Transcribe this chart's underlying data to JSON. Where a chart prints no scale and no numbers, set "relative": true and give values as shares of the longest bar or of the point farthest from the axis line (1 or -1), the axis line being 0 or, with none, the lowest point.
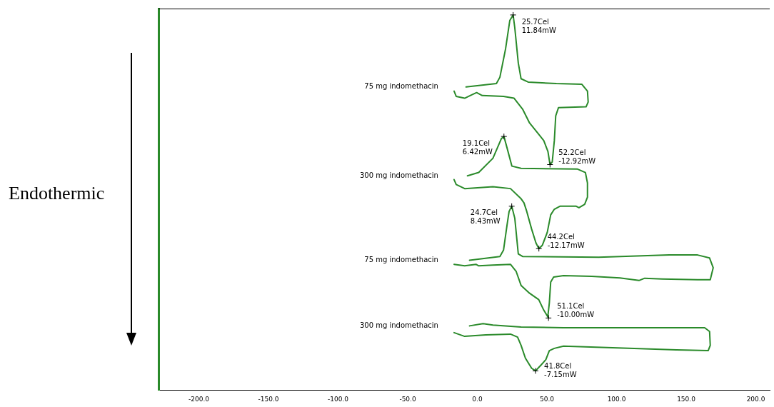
{
  "chart_data": {
    "type": "line",
    "relative": true,
    "marker": "none",
    "grid": false,
    "legend": false,
    "xlim": [
      -229,
      210
    ],
    "xticks": [
      {
        "value": -200,
        "label": "-200.0"
      },
      {
        "value": -150,
        "label": "-150.0"
      },
      {
        "value": -100,
        "label": "-100.0"
      },
      {
        "value": -50,
        "label": "-50.0"
      },
      {
        "value": 0,
        "label": "0.0"
      },
      {
        "value": 50,
        "label": "50.0"
      },
      {
        "value": 100,
        "label": "100.0"
      },
      {
        "value": 150,
        "label": "150.0"
      },
      {
        "value": 200,
        "label": "200.0"
      }
    ],
    "series": [
      {
        "name": "75 mg indomethacin",
        "color": "#2a8a2a",
        "x": [
          -8.1,
          13.7,
          16.2,
          20.3,
          23.3,
          25.7,
          26.9,
          29.4,
          31.4,
          36.5,
          56.8,
          75.1,
          79.1,
          79.6,
          78.1,
          58.3,
          56.3,
          55.3,
          53.8,
          52.2,
          50.7,
          47.7,
          43.6,
          37.5,
          32.5,
          26.4,
          18.8,
          3.5,
          -0.5,
          -4.1,
          -9.1,
          -15.2,
          -16.7
        ],
        "values": [
          0.808,
          0.817,
          0.834,
          0.91,
          0.985,
          1.0,
          0.966,
          0.872,
          0.83,
          0.821,
          0.817,
          0.815,
          0.797,
          0.768,
          0.755,
          0.753,
          0.731,
          0.665,
          0.608,
          0.601,
          0.636,
          0.665,
          0.684,
          0.712,
          0.749,
          0.778,
          0.783,
          0.785,
          0.793,
          0.787,
          0.778,
          0.783,
          0.797
        ]
      },
      {
        "name": "300 mg indomethacin",
        "color": "#2a8a2a",
        "x": [
          -7.1,
          1.0,
          11.2,
          17.2,
          19.1,
          21.3,
          24.8,
          31.4,
          72.0,
          77.6,
          79.1,
          79.1,
          77.1,
          73.0,
          71.0,
          59.3,
          55.3,
          52.7,
          50.2,
          46.7,
          44.2,
          42.1,
          39.0,
          35.5,
          33.5,
          31.4,
          23.8,
          11.2,
          -9.1,
          -15.2,
          -16.7
        ],
        "values": [
          0.571,
          0.58,
          0.618,
          0.67,
          0.676,
          0.646,
          0.597,
          0.591,
          0.589,
          0.58,
          0.552,
          0.514,
          0.495,
          0.486,
          0.49,
          0.49,
          0.482,
          0.467,
          0.42,
          0.386,
          0.377,
          0.392,
          0.429,
          0.476,
          0.499,
          0.51,
          0.537,
          0.542,
          0.537,
          0.548,
          0.561
        ]
      },
      {
        "name": "75 mg indomethacin",
        "color": "#2a8a2a",
        "x": [
          -5.6,
          16.2,
          18.8,
          21.3,
          22.8,
          24.7,
          26.9,
          29.4,
          32.5,
          87.2,
          137.9,
          158.2,
          166.8,
          169.4,
          167.3,
          158.2,
          132.9,
          120.2,
          116.1,
          102.4,
          82.2,
          61.9,
          54.8,
          52.7,
          51.7,
          50.7,
          51.1,
          47.7,
          44.1,
          37.5,
          31.4,
          27.9,
          23.8,
          11.2,
          1.0,
          -1.0,
          -9.1,
          -16.7
        ],
        "values": [
          0.346,
          0.356,
          0.373,
          0.439,
          0.476,
          0.49,
          0.458,
          0.363,
          0.356,
          0.354,
          0.36,
          0.36,
          0.352,
          0.326,
          0.294,
          0.294,
          0.296,
          0.298,
          0.292,
          0.299,
          0.303,
          0.305,
          0.301,
          0.288,
          0.232,
          0.198,
          0.192,
          0.213,
          0.241,
          0.258,
          0.279,
          0.316,
          0.335,
          0.333,
          0.331,
          0.335,
          0.331,
          0.335
        ]
      },
      {
        "name": "300 mg indomethacin",
        "color": "#2a8a2a",
        "x": [
          -5.6,
          4.1,
          11.2,
          31.4,
          61.9,
          163.3,
          166.8,
          167.3,
          165.8,
          143.0,
          112.6,
          61.9,
          55.3,
          51.7,
          49.2,
          45.6,
          41.8,
          39.0,
          34.5,
          31.4,
          28.9,
          23.8,
          6.1,
          -9.1,
          -16.7
        ],
        "values": [
          0.171,
          0.177,
          0.173,
          0.168,
          0.166,
          0.166,
          0.156,
          0.119,
          0.105,
          0.107,
          0.111,
          0.117,
          0.111,
          0.105,
          0.081,
          0.066,
          0.051,
          0.058,
          0.085,
          0.119,
          0.141,
          0.149,
          0.147,
          0.143,
          0.153
        ]
      }
    ],
    "annotations": [
      "Endothermic",
      {
        "text": "25.7Cel\n11.84mW",
        "x": 25.7,
        "y": 1.0
      },
      {
        "text": "52.2Cel\n-12.92mW",
        "x": 52.2,
        "y": 0.601
      },
      {
        "text": "19.1Cel\n6.42mW",
        "x": 19.1,
        "y": 0.676
      },
      {
        "text": "44.2Cel\n-12.17mW",
        "x": 44.2,
        "y": 0.377
      },
      {
        "text": "24.7Cel\n8.43mW",
        "x": 24.7,
        "y": 0.49
      },
      {
        "text": "51.1Cel\n-10.00mW",
        "x": 51.1,
        "y": 0.192
      },
      {
        "text": "41.8Cel\n-7.15mW",
        "x": 41.8,
        "y": 0.051
      }
    ]
  }
}
